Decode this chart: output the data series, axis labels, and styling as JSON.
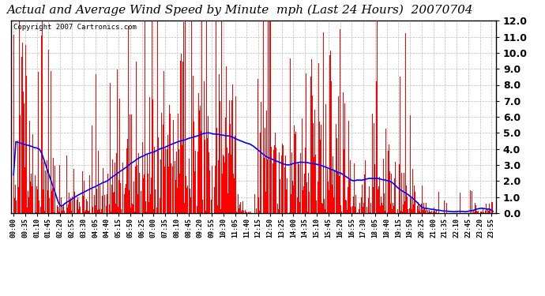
{
  "title": "Actual and Average Wind Speed by Minute  mph (Last 24 Hours)  20070704",
  "copyright": "Copyright 2007 Cartronics.com",
  "yticks": [
    0.0,
    1.0,
    2.0,
    3.0,
    4.0,
    5.0,
    6.0,
    7.0,
    8.0,
    9.0,
    10.0,
    11.0,
    12.0
  ],
  "ylim": [
    0.0,
    12.0
  ],
  "bar_color": "#FF0000",
  "line_color": "#0000FF",
  "bg_color": "#FFFFFF",
  "grid_color": "#BBBBBB",
  "title_fontsize": 11,
  "copyright_fontsize": 6.5,
  "ytick_fontsize": 9,
  "xtick_fontsize": 6,
  "n_minutes": 1440,
  "seed": 7
}
